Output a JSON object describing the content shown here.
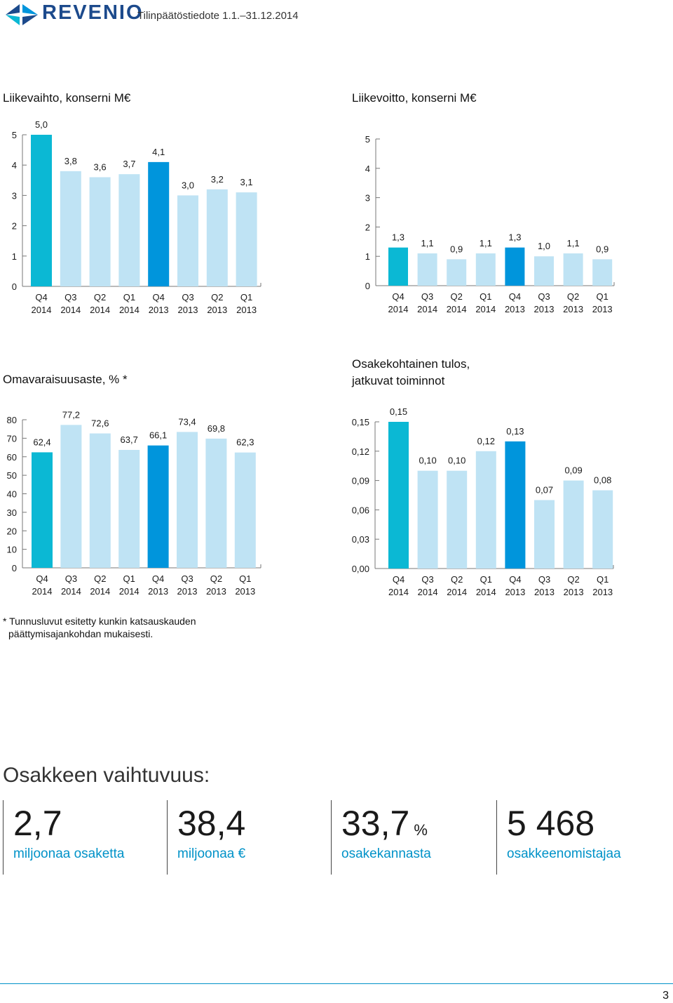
{
  "header": {
    "logo_text": "REVENIO",
    "doc_title": "Tilinpäätöstiedote 1.1.–31.12.2014"
  },
  "colors": {
    "highlight_current": "#0bb8d4",
    "highlight_prev_year": "#0095dc",
    "bar_light": "#bfe3f4",
    "link_blue": "#0092c8"
  },
  "chart_data": [
    {
      "type": "bar",
      "title": "Liikevaihto, konserni M€",
      "categories": [
        "Q4 2014",
        "Q3 2014",
        "Q2 2014",
        "Q1 2014",
        "Q4 2013",
        "Q3 2013",
        "Q2 2013",
        "Q1 2013"
      ],
      "category_lines": [
        [
          "Q4",
          "2014"
        ],
        [
          "Q3",
          "2014"
        ],
        [
          "Q2",
          "2014"
        ],
        [
          "Q1",
          "2014"
        ],
        [
          "Q4",
          "2013"
        ],
        [
          "Q3",
          "2013"
        ],
        [
          "Q2",
          "2013"
        ],
        [
          "Q1",
          "2013"
        ]
      ],
      "values": [
        5.0,
        3.8,
        3.6,
        3.7,
        4.1,
        3.0,
        3.2,
        3.1
      ],
      "value_labels": [
        "5,0",
        "3,8",
        "3,6",
        "3,7",
        "4,1",
        "3,0",
        "3,2",
        "3,1"
      ],
      "ylim": [
        0,
        5
      ],
      "yticks": [
        "0",
        "1",
        "2",
        "3",
        "4",
        "5"
      ],
      "ytick_values": [
        0,
        1,
        2,
        3,
        4,
        5
      ],
      "bar_colors": [
        "#0bb8d4",
        "#bfe3f4",
        "#bfe3f4",
        "#bfe3f4",
        "#0095dc",
        "#bfe3f4",
        "#bfe3f4",
        "#bfe3f4"
      ],
      "xlabel": "",
      "ylabel": "",
      "grid": false
    },
    {
      "type": "bar",
      "title": "Liikevoitto, konserni M€",
      "categories": [
        "Q4 2014",
        "Q3 2014",
        "Q2 2014",
        "Q1 2014",
        "Q4 2013",
        "Q3 2013",
        "Q2 2013",
        "Q1 2013"
      ],
      "category_lines": [
        [
          "Q4",
          "2014"
        ],
        [
          "Q3",
          "2014"
        ],
        [
          "Q2",
          "2014"
        ],
        [
          "Q1",
          "2014"
        ],
        [
          "Q4",
          "2013"
        ],
        [
          "Q3",
          "2013"
        ],
        [
          "Q2",
          "2013"
        ],
        [
          "Q1",
          "2013"
        ]
      ],
      "values": [
        1.3,
        1.1,
        0.9,
        1.1,
        1.3,
        1.0,
        1.1,
        0.9
      ],
      "value_labels": [
        "1,3",
        "1,1",
        "0,9",
        "1,1",
        "1,3",
        "1,0",
        "1,1",
        "0,9"
      ],
      "ylim": [
        0,
        5
      ],
      "yticks": [
        "0",
        "1",
        "2",
        "3",
        "4",
        "5"
      ],
      "ytick_values": [
        0,
        1,
        2,
        3,
        4,
        5
      ],
      "bar_colors": [
        "#0bb8d4",
        "#bfe3f4",
        "#bfe3f4",
        "#bfe3f4",
        "#0095dc",
        "#bfe3f4",
        "#bfe3f4",
        "#bfe3f4"
      ],
      "xlabel": "",
      "ylabel": "",
      "grid": false
    },
    {
      "type": "bar",
      "title": "Omavaraisuusaste, % *",
      "categories": [
        "Q4 2014",
        "Q3 2014",
        "Q2 2014",
        "Q1 2014",
        "Q4 2013",
        "Q3 2013",
        "Q2 2013",
        "Q1 2013"
      ],
      "category_lines": [
        [
          "Q4",
          "2014"
        ],
        [
          "Q3",
          "2014"
        ],
        [
          "Q2",
          "2014"
        ],
        [
          "Q1",
          "2014"
        ],
        [
          "Q4",
          "2013"
        ],
        [
          "Q3",
          "2013"
        ],
        [
          "Q2",
          "2013"
        ],
        [
          "Q1",
          "2013"
        ]
      ],
      "values": [
        62.4,
        77.2,
        72.6,
        63.7,
        66.1,
        73.4,
        69.8,
        62.3
      ],
      "value_labels": [
        "62,4",
        "77,2",
        "72,6",
        "63,7",
        "66,1",
        "73,4",
        "69,8",
        "62,3"
      ],
      "ylim": [
        0,
        80
      ],
      "yticks": [
        "0",
        "10",
        "20",
        "30",
        "40",
        "50",
        "60",
        "70",
        "80"
      ],
      "ytick_values": [
        0,
        10,
        20,
        30,
        40,
        50,
        60,
        70,
        80
      ],
      "bar_colors": [
        "#0bb8d4",
        "#bfe3f4",
        "#bfe3f4",
        "#bfe3f4",
        "#0095dc",
        "#bfe3f4",
        "#bfe3f4",
        "#bfe3f4"
      ],
      "xlabel": "",
      "ylabel": "",
      "grid": false
    },
    {
      "type": "bar",
      "title": "Osakekohtainen tulos,",
      "title_line2": "jatkuvat toiminnot",
      "categories": [
        "Q4 2014",
        "Q3 2014",
        "Q2 2014",
        "Q1 2014",
        "Q4 2013",
        "Q3 2013",
        "Q2 2013",
        "Q1 2013"
      ],
      "category_lines": [
        [
          "Q4",
          "2014"
        ],
        [
          "Q3",
          "2014"
        ],
        [
          "Q2",
          "2014"
        ],
        [
          "Q1",
          "2014"
        ],
        [
          "Q4",
          "2013"
        ],
        [
          "Q3",
          "2013"
        ],
        [
          "Q2",
          "2013"
        ],
        [
          "Q1",
          "2013"
        ]
      ],
      "values": [
        0.15,
        0.1,
        0.1,
        0.12,
        0.13,
        0.07,
        0.09,
        0.08
      ],
      "value_labels": [
        "0,15",
        "0,10",
        "0,10",
        "0,12",
        "0,13",
        "0,07",
        "0,09",
        "0,08"
      ],
      "ylim": [
        0,
        0.15
      ],
      "yticks": [
        "0,00",
        "0,03",
        "0,06",
        "0,09",
        "0,12",
        "0,15"
      ],
      "ytick_values": [
        0,
        0.03,
        0.06,
        0.09,
        0.12,
        0.15
      ],
      "bar_colors": [
        "#0bb8d4",
        "#bfe3f4",
        "#bfe3f4",
        "#bfe3f4",
        "#0095dc",
        "#bfe3f4",
        "#bfe3f4",
        "#bfe3f4"
      ],
      "xlabel": "",
      "ylabel": "",
      "grid": false
    }
  ],
  "footnote": {
    "line1": "* Tunnusluvut esitetty kunkin katsauskauden",
    "line2": "päättymisajankohdan mukaisesti."
  },
  "turnover": {
    "title": "Osakkeen vaihtuvuus:",
    "items": [
      {
        "value": "2,7",
        "unit_inline": "",
        "unit": "miljoonaa osaketta"
      },
      {
        "value": "38,4",
        "unit_inline": "",
        "unit": "miljoonaa €"
      },
      {
        "value": "33,7",
        "unit_inline": "%",
        "unit": "osakekannasta"
      },
      {
        "value": "5 468",
        "unit_inline": "",
        "unit": "osakkeenomistajaa"
      }
    ]
  },
  "page_number": "3"
}
